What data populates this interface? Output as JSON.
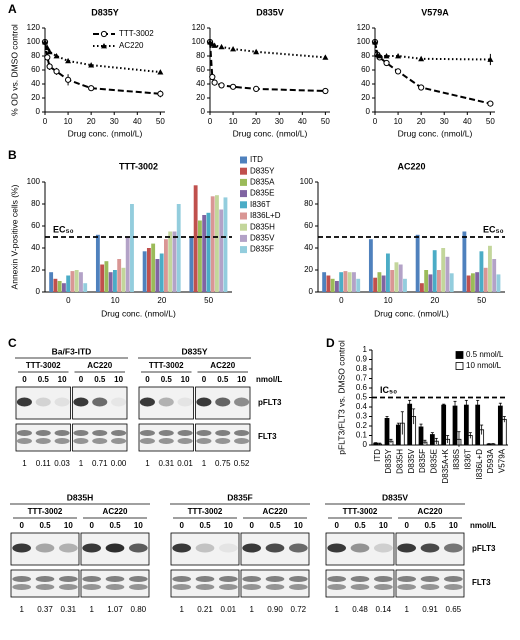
{
  "panels": [
    "A",
    "B",
    "C",
    "D"
  ],
  "chart_data": [
    {
      "type": "line",
      "title": "D835Y",
      "x_label": "Drug conc. (nmol/L)",
      "y_label": "% OD vs. DMSO control",
      "x": [
        0,
        1,
        2,
        5,
        10,
        20,
        50
      ],
      "xlim": [
        0,
        52
      ],
      "xticks": [
        0,
        10,
        20,
        30,
        40,
        50
      ],
      "ylim": [
        0,
        120
      ],
      "yticks": [
        0,
        20,
        40,
        60,
        80,
        100,
        120
      ],
      "legend": "upper right",
      "series": [
        {
          "name": "TTT-3002",
          "color": "#000000",
          "dash": "dashed",
          "marker": "circle",
          "values": [
            100,
            78,
            65,
            58,
            46,
            34,
            26
          ],
          "errors": [
            2,
            4,
            5,
            5,
            8,
            4,
            5
          ]
        },
        {
          "name": "AC220",
          "color": "#000000",
          "dash": "dotted",
          "marker": "triangle",
          "values": [
            100,
            92,
            86,
            80,
            73,
            67,
            57
          ],
          "errors": [
            2,
            2,
            3,
            2,
            2,
            2,
            3
          ]
        }
      ]
    },
    {
      "type": "line",
      "title": "D835V",
      "x_label": "Drug conc. (nmol/L)",
      "x": [
        0,
        1,
        2,
        5,
        10,
        20,
        50
      ],
      "xlim": [
        0,
        52
      ],
      "xticks": [
        0,
        10,
        20,
        30,
        40,
        50
      ],
      "ylim": [
        0,
        120
      ],
      "yticks": [
        0,
        20,
        40,
        60,
        80,
        100,
        120
      ],
      "series": [
        {
          "color": "#000000",
          "dash": "dashed",
          "marker": "circle",
          "values": [
            100,
            50,
            42,
            38,
            36,
            33,
            30
          ],
          "errors": [
            2,
            3,
            2,
            2,
            2,
            2,
            2
          ]
        },
        {
          "color": "#000000",
          "dash": "dotted",
          "marker": "triangle",
          "values": [
            100,
            97,
            95,
            93,
            90,
            86,
            78
          ],
          "errors": [
            2,
            2,
            2,
            2,
            2,
            2,
            3
          ]
        }
      ]
    },
    {
      "type": "line",
      "title": "V579A",
      "x_label": "Drug conc. (nmol/L)",
      "x": [
        0,
        1,
        2,
        5,
        10,
        20,
        50
      ],
      "xlim": [
        0,
        52
      ],
      "xticks": [
        0,
        10,
        20,
        30,
        40,
        50
      ],
      "ylim": [
        0,
        120
      ],
      "yticks": [
        0,
        20,
        40,
        60,
        80,
        100,
        120
      ],
      "series": [
        {
          "color": "#000000",
          "dash": "dashed",
          "marker": "circle",
          "values": [
            100,
            82,
            78,
            70,
            58,
            35,
            12
          ],
          "errors": [
            2,
            6,
            4,
            3,
            3,
            3,
            3
          ]
        },
        {
          "color": "#000000",
          "dash": "dotted",
          "marker": "triangle",
          "values": [
            100,
            82,
            80,
            80,
            80,
            76,
            75
          ],
          "errors": [
            2,
            3,
            2,
            2,
            3,
            3,
            8
          ]
        }
      ]
    },
    {
      "type": "bar",
      "title": "TTT-3002",
      "x_label": "Drug conc. (nmol/L)",
      "y_label": "Annexin V-positive cells (%)",
      "categories": [
        "0",
        "10",
        "20",
        "50"
      ],
      "ylim": [
        0,
        100
      ],
      "yticks": [
        0,
        20,
        40,
        60,
        80,
        100
      ],
      "threshold": {
        "value": 50,
        "label": "EC₅₀"
      },
      "legend": "right",
      "series": [
        {
          "name": "ITD",
          "color": "#4f81bd",
          "values": [
            18,
            52,
            37,
            50
          ]
        },
        {
          "name": "D835Y",
          "color": "#c0504d",
          "values": [
            12,
            25,
            40,
            97
          ]
        },
        {
          "name": "D835A",
          "color": "#9bbb59",
          "values": [
            10,
            28,
            44,
            65
          ]
        },
        {
          "name": "D835E",
          "color": "#8064a2",
          "values": [
            8,
            18,
            30,
            70
          ]
        },
        {
          "name": "I836T",
          "color": "#4bacc6",
          "values": [
            15,
            20,
            35,
            72
          ]
        },
        {
          "name": "I836L+D",
          "color": "#d99694",
          "values": [
            19,
            30,
            48,
            87
          ]
        },
        {
          "name": "D835H",
          "color": "#c3d69b",
          "values": [
            20,
            22,
            55,
            88
          ]
        },
        {
          "name": "D835V",
          "color": "#b3a2c7",
          "values": [
            18,
            50,
            55,
            75
          ]
        },
        {
          "name": "D835F",
          "color": "#93cddd",
          "values": [
            8,
            80,
            80,
            86
          ]
        }
      ]
    },
    {
      "type": "bar",
      "title": "AC220",
      "x_label": "Drug conc. (nmol/L)",
      "categories": [
        "0",
        "10",
        "20",
        "50"
      ],
      "ylim": [
        0,
        100
      ],
      "yticks": [
        0,
        20,
        40,
        60,
        80,
        100
      ],
      "threshold": {
        "value": 50,
        "label": "EC₅₀"
      },
      "series": [
        {
          "color": "#4f81bd",
          "values": [
            18,
            48,
            52,
            55
          ]
        },
        {
          "color": "#c0504d",
          "values": [
            15,
            13,
            8,
            15
          ]
        },
        {
          "color": "#9bbb59",
          "values": [
            12,
            18,
            20,
            17
          ]
        },
        {
          "color": "#8064a2",
          "values": [
            10,
            15,
            16,
            18
          ]
        },
        {
          "color": "#4bacc6",
          "values": [
            18,
            35,
            38,
            37
          ]
        },
        {
          "color": "#d99694",
          "values": [
            19,
            20,
            20,
            22
          ]
        },
        {
          "color": "#c3d69b",
          "values": [
            18,
            27,
            40,
            42
          ]
        },
        {
          "color": "#b3a2c7",
          "values": [
            18,
            25,
            32,
            30
          ]
        },
        {
          "color": "#93cddd",
          "values": [
            12,
            12,
            17,
            16
          ]
        }
      ]
    },
    {
      "type": "bar",
      "y_label": "pFLT3/FLT3 vs. DMSO control",
      "categories": [
        "ITD",
        "D835Y",
        "D835H",
        "D835V",
        "D835F",
        "D835E",
        "D835A+K",
        "I836S",
        "I836T",
        "I836L+D",
        "D593A",
        "V579A"
      ],
      "ylim": [
        0,
        1
      ],
      "yticks": [
        0,
        0.1,
        0.2,
        0.3,
        0.4,
        0.5,
        0.6,
        0.7,
        0.8,
        0.9,
        1
      ],
      "threshold": {
        "value": 0.5,
        "label": "IC₅₀"
      },
      "legend": "upper right",
      "series": [
        {
          "name": "0.5 nmol/L",
          "color": "#000000",
          "values": [
            0.02,
            0.28,
            0.21,
            0.43,
            0.19,
            0.11,
            0.42,
            0.41,
            0.42,
            0.42,
            0.01,
            0.41
          ],
          "errors": [
            0.005,
            0.02,
            0.02,
            0.04,
            0.03,
            0.02,
            0.01,
            0.05,
            0.05,
            0.05,
            0.005,
            0.03
          ]
        },
        {
          "name": "10 nmol/L",
          "color": "#ffffff",
          "values": [
            0.01,
            0.04,
            0.23,
            0.3,
            0.03,
            0.04,
            0.06,
            0.06,
            0.1,
            0.16,
            0.01,
            0.27
          ],
          "errors": [
            0.01,
            0.02,
            0.12,
            0.08,
            0.02,
            0.03,
            0.04,
            0.08,
            0.03,
            0.05,
            0.005,
            0.03
          ]
        }
      ]
    }
  ],
  "blots": {
    "unit": "nmol/L",
    "doses": [
      "0",
      "0.5",
      "10"
    ],
    "drugs": [
      "TTT-3002",
      "AC220"
    ],
    "bands": [
      "pFLT3",
      "FLT3"
    ],
    "rows": [
      {
        "blocks": [
          {
            "title": "Ba/F3-ITD",
            "quant": [
              "1",
              "0.11",
              "0.03",
              "1",
              "0.71",
              "0.00"
            ]
          },
          {
            "title": "D835Y",
            "quant": [
              "1",
              "0.31",
              "0.01",
              "1",
              "0.75",
              "0.52"
            ]
          }
        ]
      },
      {
        "blocks": [
          {
            "title": "D835H",
            "quant": [
              "1",
              "0.37",
              "0.31",
              "1",
              "1.07",
              "0.80"
            ]
          },
          {
            "title": "D835F",
            "quant": [
              "1",
              "0.21",
              "0.01",
              "1",
              "0.90",
              "0.72"
            ]
          },
          {
            "title": "D835V",
            "quant": [
              "1",
              "0.48",
              "0.14",
              "1",
              "0.91",
              "0.65"
            ]
          }
        ]
      }
    ]
  }
}
